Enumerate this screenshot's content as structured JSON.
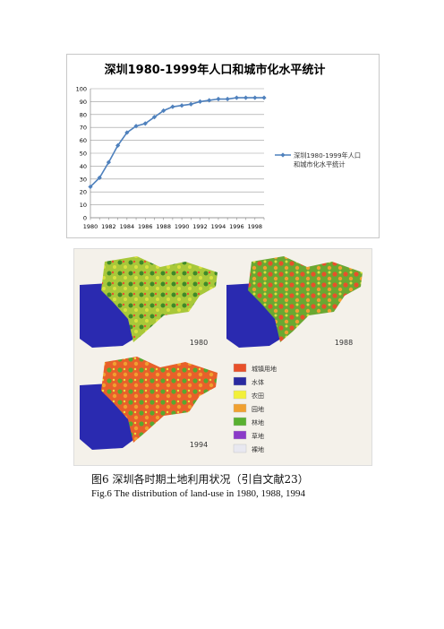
{
  "chart_data": {
    "type": "line",
    "title": "深圳1980-1999年人口和城市化水平统计",
    "x": [
      1980,
      1981,
      1982,
      1983,
      1984,
      1985,
      1986,
      1987,
      1988,
      1989,
      1990,
      1991,
      1992,
      1993,
      1994,
      1995,
      1996,
      1997,
      1998,
      1999
    ],
    "x_tick_labels": [
      "1980",
      "1982",
      "1984",
      "1986",
      "1988",
      "1990",
      "1992",
      "1994",
      "1996",
      "1998"
    ],
    "ylim": [
      0,
      100
    ],
    "y_ticks": [
      0,
      10,
      20,
      30,
      40,
      50,
      60,
      70,
      80,
      90,
      100
    ],
    "series": [
      {
        "name": "深圳1980-1999年人口和城市化水平统计",
        "color": "#4f81bd",
        "values": [
          24,
          31,
          43,
          56,
          66,
          71,
          73,
          78,
          83,
          86,
          87,
          88,
          90,
          91,
          92,
          92,
          93,
          93,
          93,
          93
        ]
      }
    ],
    "grid": true,
    "legend_position": "right"
  },
  "figure": {
    "map_labels": [
      "1980",
      "1988",
      "1994"
    ],
    "legend": [
      {
        "label": "城镇用地",
        "color": "#e8502a"
      },
      {
        "label": "水体",
        "color": "#2a2aa0"
      },
      {
        "label": "农田",
        "color": "#f2f03a"
      },
      {
        "label": "园地",
        "color": "#f0a030"
      },
      {
        "label": "林地",
        "color": "#58b030"
      },
      {
        "label": "草地",
        "color": "#8a3ac8"
      },
      {
        "label": "裸地",
        "color": "#e8e8f0"
      }
    ],
    "caption_cn": "图6  深圳各时期土地利用状况（引自文献23）",
    "caption_en": "Fig.6  The distribution of land-use in 1980, 1988, 1994"
  }
}
